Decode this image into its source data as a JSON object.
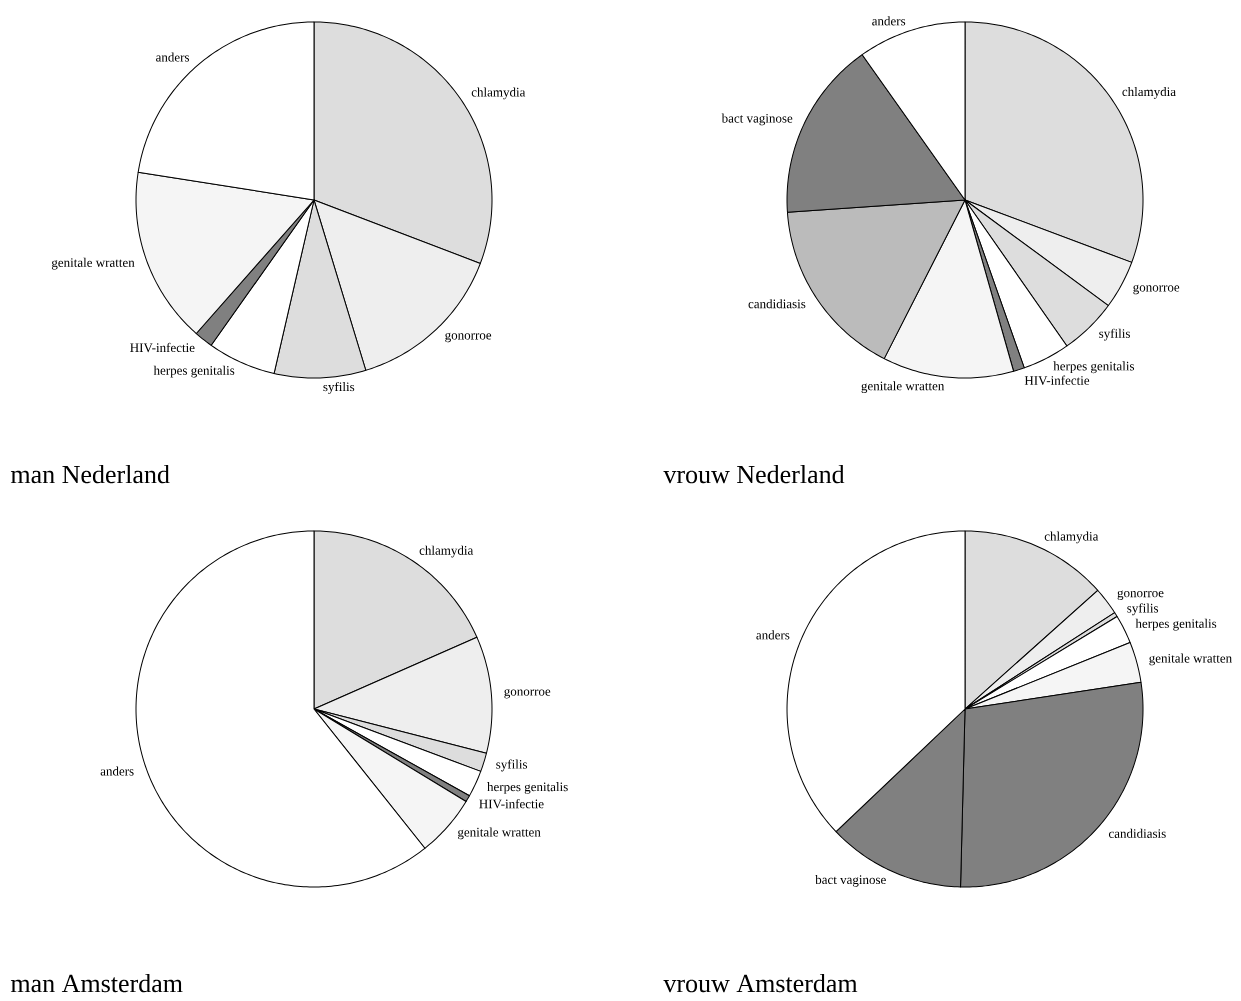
{
  "chart_data": [
    {
      "type": "pie",
      "title": "man Nederland",
      "categories": [
        "chlamydia",
        "gonorroe",
        "syfilis",
        "herpes genitalis",
        "HIV-infectie",
        "genitale wratten",
        "anders"
      ],
      "values": [
        30.8,
        14.5,
        8.3,
        6.2,
        1.7,
        16.0,
        22.5
      ],
      "colors": [
        "#dddddd",
        "#eeeeee",
        "#dddddd",
        "#ffffff",
        "#808080",
        "#f5f5f5",
        "#ffffff"
      ]
    },
    {
      "type": "pie",
      "title": "vrouw Nederland",
      "categories": [
        "chlamydia",
        "gonorroe",
        "syfilis",
        "herpes genitalis",
        "HIV-infectie",
        "genitale wratten",
        "candidiasis",
        "bact vaginose",
        "anders"
      ],
      "values": [
        30.7,
        4.4,
        5.2,
        4.3,
        1.0,
        11.9,
        16.4,
        16.3,
        9.8
      ],
      "colors": [
        "#dddddd",
        "#eeeeee",
        "#dddddd",
        "#ffffff",
        "#808080",
        "#f5f5f5",
        "#bbbbbb",
        "#808080",
        "#ffffff"
      ]
    },
    {
      "type": "pie",
      "title": "man Amsterdam",
      "categories": [
        "chlamydia",
        "gonorroe",
        "syfilis",
        "herpes genitalis",
        "HIV-infectie",
        "genitale wratten",
        "anders"
      ],
      "values": [
        18.4,
        10.6,
        1.7,
        2.4,
        0.6,
        5.6,
        60.7
      ],
      "colors": [
        "#dddddd",
        "#eeeeee",
        "#dddddd",
        "#ffffff",
        "#808080",
        "#f5f5f5",
        "#ffffff"
      ]
    },
    {
      "type": "pie",
      "title": "vrouw Amsterdam",
      "categories": [
        "chlamydia",
        "gonorroe",
        "syfilis",
        "herpes genitalis",
        "genitale wratten",
        "candidiasis",
        "bact vaginose",
        "anders"
      ],
      "values": [
        13.4,
        2.5,
        0.4,
        2.6,
        3.7,
        27.8,
        12.5,
        37.1
      ],
      "colors": [
        "#dddddd",
        "#eeeeee",
        "#dddddd",
        "#ffffff",
        "#f5f5f5",
        "#808080",
        "#808080",
        "#ffffff"
      ]
    }
  ]
}
